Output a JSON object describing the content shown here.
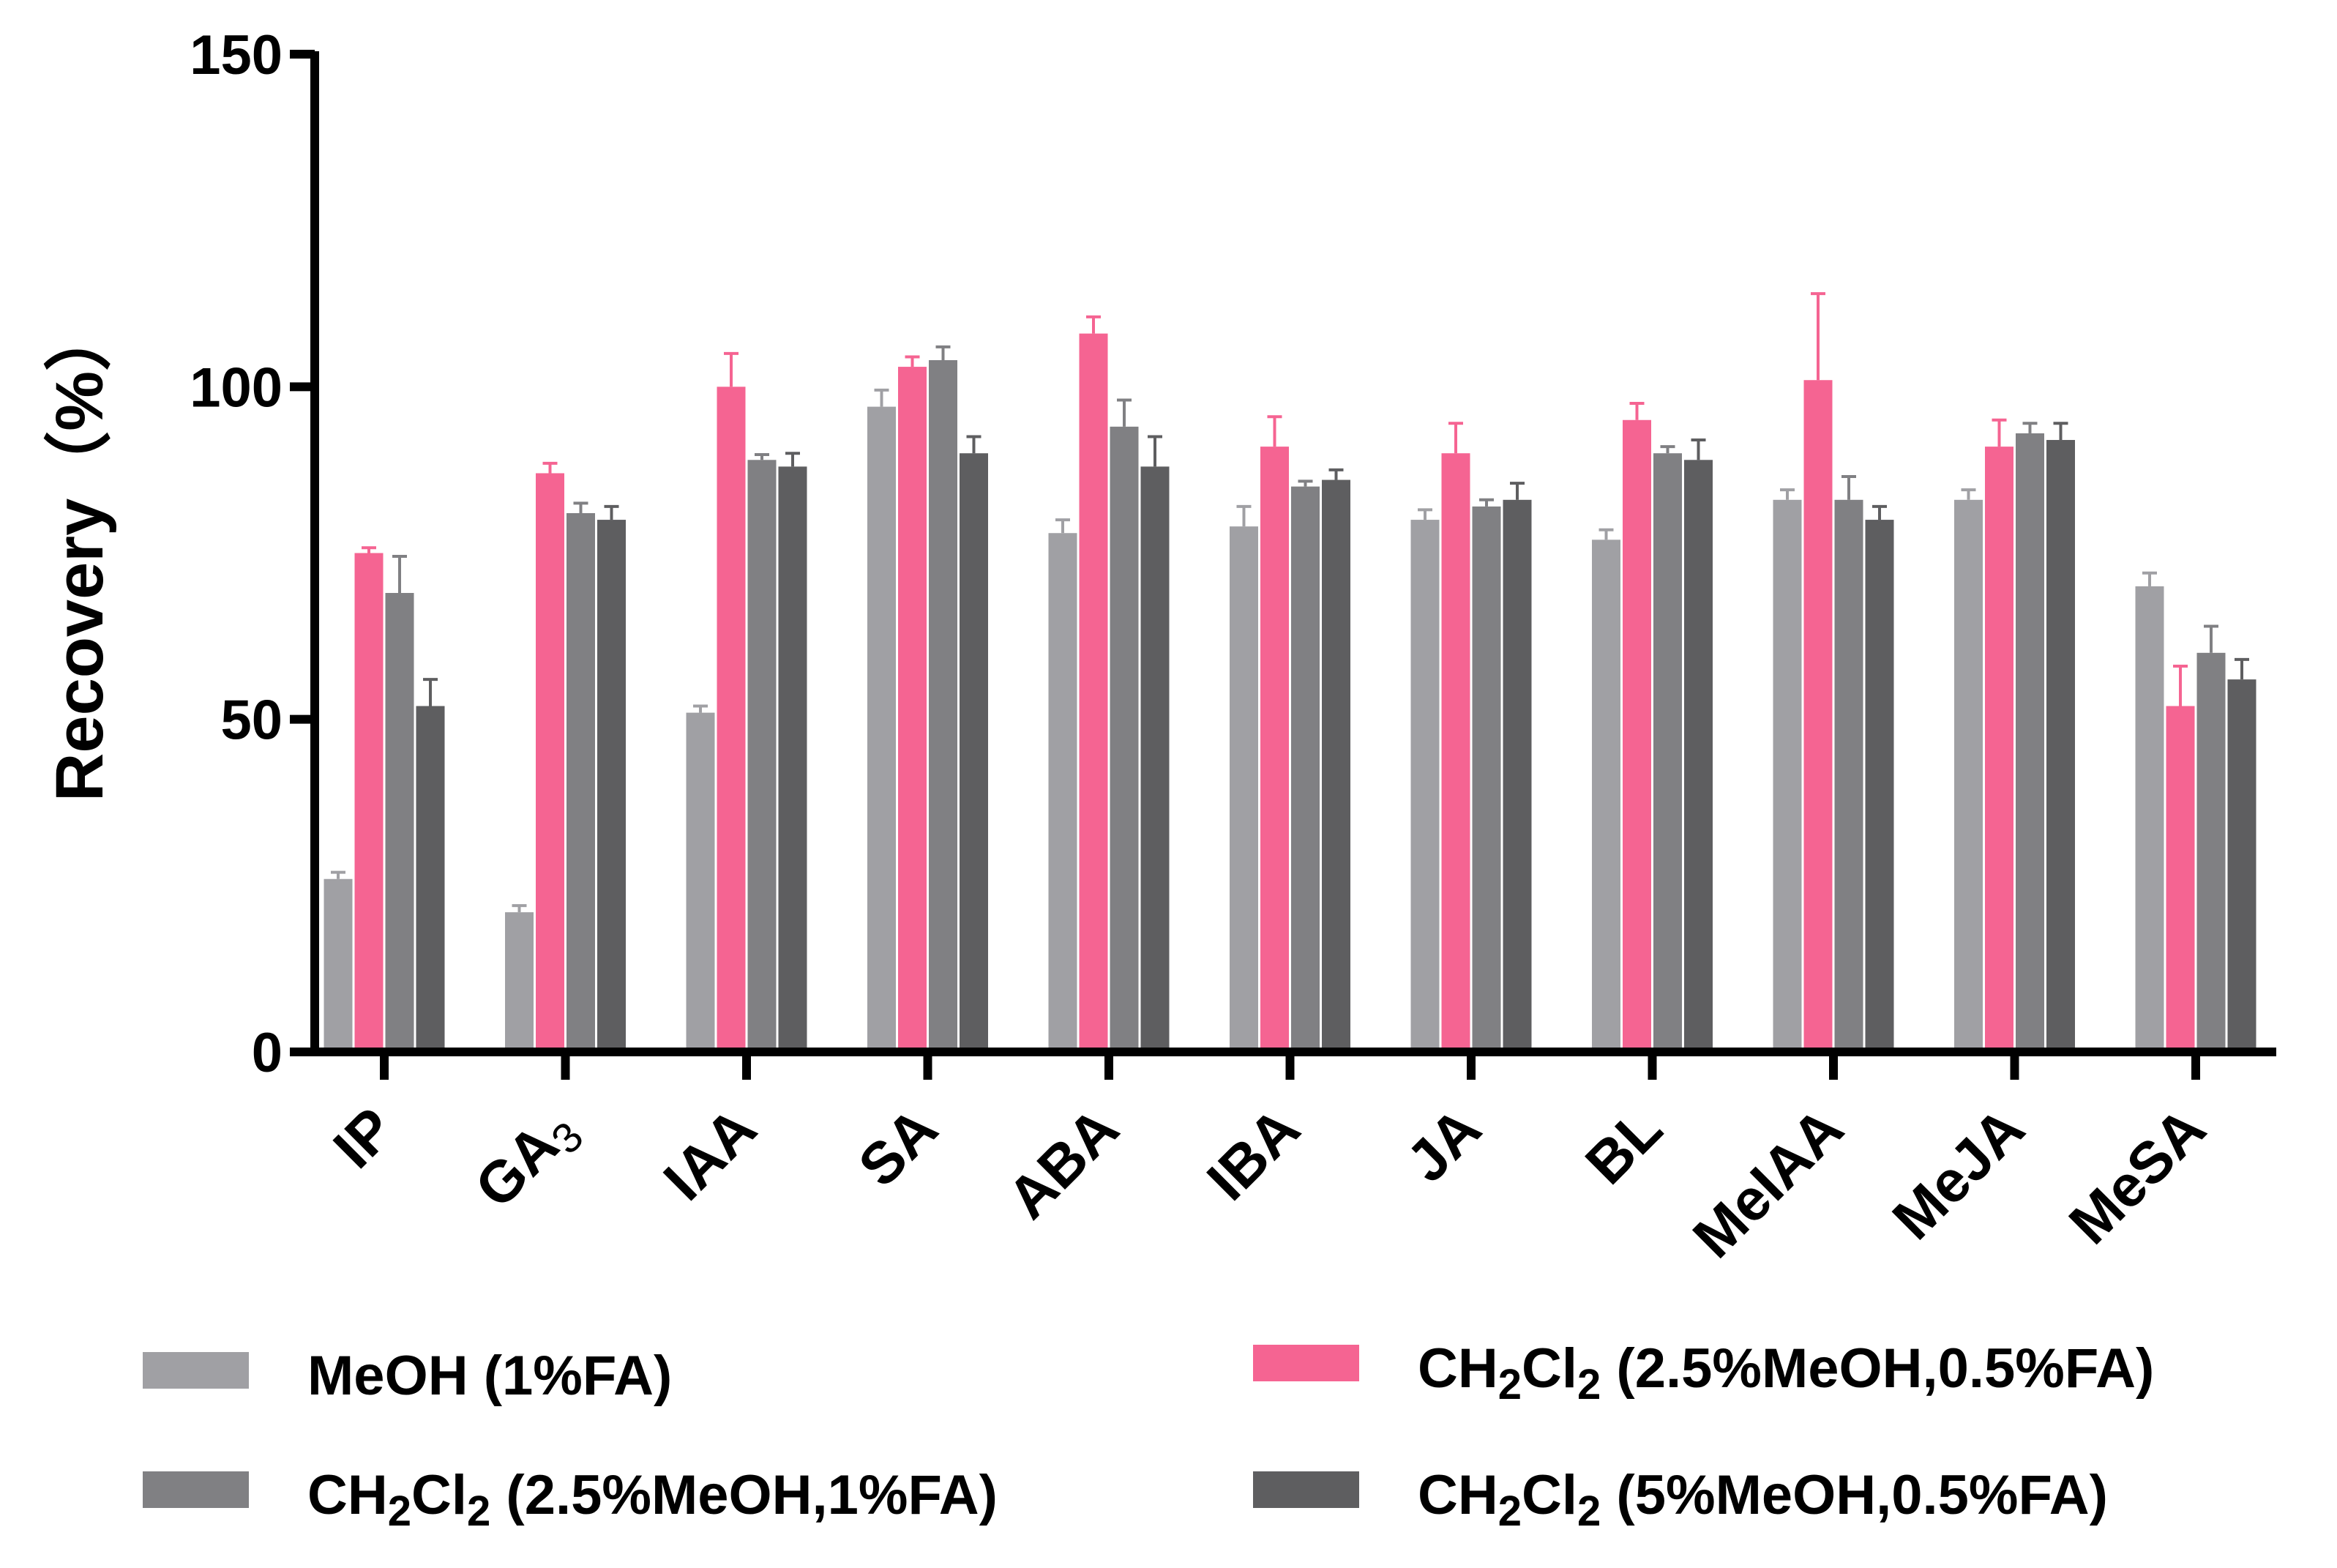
{
  "chart_data": {
    "type": "bar",
    "title": "",
    "xlabel": "",
    "ylabel": "Recovery（%）",
    "ylim": [
      0,
      150
    ],
    "yticks": [
      0,
      50,
      100,
      150
    ],
    "grid": false,
    "legend_position": "bottom",
    "categories": [
      {
        "text": "IP"
      },
      {
        "text": "GA",
        "sub": "3"
      },
      {
        "text": "IAA"
      },
      {
        "text": "SA"
      },
      {
        "text": "ABA"
      },
      {
        "text": "IBA"
      },
      {
        "text": "JA"
      },
      {
        "text": "BL"
      },
      {
        "text": "MeIAA"
      },
      {
        "text": "MeJA"
      },
      {
        "text": "MeSA"
      }
    ],
    "series": [
      {
        "name": "MeOH (1%FA)",
        "legend": [
          {
            "t": "MeOH (1%FA)"
          }
        ],
        "color": "#a0a0a4",
        "values": [
          26,
          21,
          51,
          97,
          78,
          79,
          80,
          77,
          83,
          83,
          70
        ],
        "errors": [
          1,
          1,
          1,
          2.5,
          2,
          3,
          1.5,
          1.5,
          1.5,
          1.5,
          2
        ]
      },
      {
        "name": "CH2Cl2 (2.5%MeOH,0.5%FA)",
        "legend": [
          {
            "t": "CH"
          },
          {
            "t": "2",
            "sub": true
          },
          {
            "t": "Cl"
          },
          {
            "t": "2",
            "sub": true
          },
          {
            "t": " (2.5%MeOH,0.5%FA)"
          }
        ],
        "color": "#f56492",
        "values": [
          75,
          87,
          100,
          103,
          108,
          91,
          90,
          95,
          101,
          91,
          52
        ],
        "errors": [
          0.8,
          1.5,
          5,
          1.5,
          2.5,
          4.5,
          4.5,
          2.5,
          13,
          4,
          6
        ]
      },
      {
        "name": "CH2Cl2 (2.5%MeOH,1%FA)",
        "legend": [
          {
            "t": "CH"
          },
          {
            "t": "2",
            "sub": true
          },
          {
            "t": "Cl"
          },
          {
            "t": "2",
            "sub": true
          },
          {
            "t": " (2.5%MeOH,1%FA)"
          }
        ],
        "color": "#808083",
        "values": [
          69,
          81,
          89,
          104,
          94,
          85,
          82,
          90,
          83,
          93,
          60
        ],
        "errors": [
          5.5,
          1.5,
          0.8,
          2,
          4,
          0.8,
          1,
          1,
          3.5,
          1.5,
          4
        ]
      },
      {
        "name": "CH2Cl2 (5%MeOH,0.5%FA)",
        "legend": [
          {
            "t": "CH"
          },
          {
            "t": "2",
            "sub": true
          },
          {
            "t": "Cl"
          },
          {
            "t": "2",
            "sub": true
          },
          {
            "t": " (5%MeOH,0.5%FA)"
          }
        ],
        "color": "#5e5e60",
        "values": [
          52,
          80,
          88,
          90,
          88,
          86,
          83,
          89,
          80,
          92,
          56
        ],
        "errors": [
          4,
          2,
          2,
          2.5,
          4.5,
          1.5,
          2.5,
          3,
          2,
          2.5,
          3
        ]
      }
    ]
  }
}
